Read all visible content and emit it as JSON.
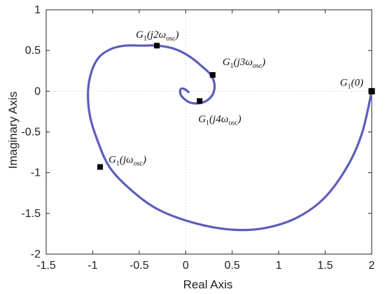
{
  "chart_data": {
    "type": "line",
    "title": "",
    "xlabel": "Real Axis",
    "ylabel": "Imaginary Axis",
    "xlim": [
      -1.5,
      2
    ],
    "ylim": [
      -2,
      1
    ],
    "xticks": [
      "-1.5",
      "-1",
      "-0.5",
      "0",
      "0.5",
      "1",
      "1.5",
      "2"
    ],
    "yticks": [
      "1",
      "0.5",
      "0",
      "-0.5",
      "-1",
      "-1.5",
      "-2"
    ],
    "grid": false,
    "reference_lines": {
      "x": 0,
      "y": 0,
      "style": "dotted"
    },
    "series": [
      {
        "color": "#4a63c8",
        "overlay_color": "#c2426b",
        "x": [
          2.0,
          1.9,
          1.75,
          1.5,
          1.2,
          0.85,
          0.5,
          0.1,
          -0.3,
          -0.6,
          -0.82,
          -0.95,
          -1.03,
          -1.05,
          -1.01,
          -0.93,
          -0.8,
          -0.65,
          -0.47,
          -0.3,
          -0.12,
          0.05,
          0.18,
          0.27,
          0.31,
          0.29,
          0.22,
          0.13,
          0.05,
          -0.01,
          -0.05,
          -0.06,
          -0.05,
          -0.02,
          0.01,
          0.03
        ],
        "y": [
          0.0,
          -0.5,
          -0.9,
          -1.3,
          -1.55,
          -1.68,
          -1.7,
          -1.62,
          -1.45,
          -1.2,
          -0.93,
          -0.6,
          -0.3,
          0.0,
          0.25,
          0.42,
          0.52,
          0.56,
          0.56,
          0.56,
          0.52,
          0.42,
          0.3,
          0.2,
          0.08,
          -0.04,
          -0.12,
          -0.15,
          -0.14,
          -0.1,
          -0.05,
          0.0,
          0.03,
          0.03,
          0.01,
          -0.01
        ]
      }
    ],
    "markers": [
      {
        "label_main": "G",
        "label_sub": "1",
        "label_arg": "(0)",
        "x": 2.0,
        "y": 0.0,
        "anchor": "left"
      },
      {
        "label_main": "G",
        "label_sub": "1",
        "label_arg": "(jω",
        "label_sub2": "osc",
        "label_end": ")",
        "x": -0.92,
        "y": -0.93,
        "anchor": "right"
      },
      {
        "label_main": "G",
        "label_sub": "1",
        "label_arg": "(j2ω",
        "label_sub2": "osc",
        "label_end": ")",
        "x": -0.31,
        "y": 0.56,
        "anchor": "above"
      },
      {
        "label_main": "G",
        "label_sub": "1",
        "label_arg": "(j3ω",
        "label_sub2": "osc",
        "label_end": ")",
        "x": 0.29,
        "y": 0.2,
        "anchor": "upper-right"
      },
      {
        "label_main": "G",
        "label_sub": "1",
        "label_arg": "(j4ω",
        "label_sub2": "osc",
        "label_end": ")",
        "x": 0.15,
        "y": -0.12,
        "anchor": "below"
      }
    ]
  }
}
